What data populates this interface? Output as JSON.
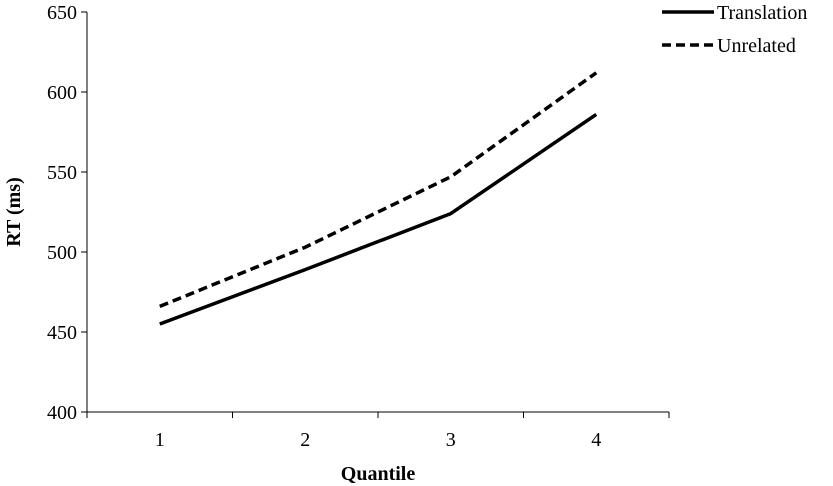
{
  "chart_data": {
    "type": "line",
    "categories": [
      "1",
      "2",
      "3",
      "4"
    ],
    "series": [
      {
        "name": "Translation",
        "values": [
          455,
          489,
          524,
          586
        ],
        "line_style": "solid",
        "color": "#000000"
      },
      {
        "name": "Unrelated",
        "values": [
          466,
          503,
          547,
          612
        ],
        "line_style": "dashed",
        "color": "#000000"
      }
    ],
    "xlabel": "Quantile",
    "ylabel": "RT (ms)",
    "ylim": [
      400,
      650
    ],
    "yticks": [
      400,
      450,
      500,
      550,
      600,
      650
    ],
    "grid": false,
    "legend_position": "top-right"
  }
}
